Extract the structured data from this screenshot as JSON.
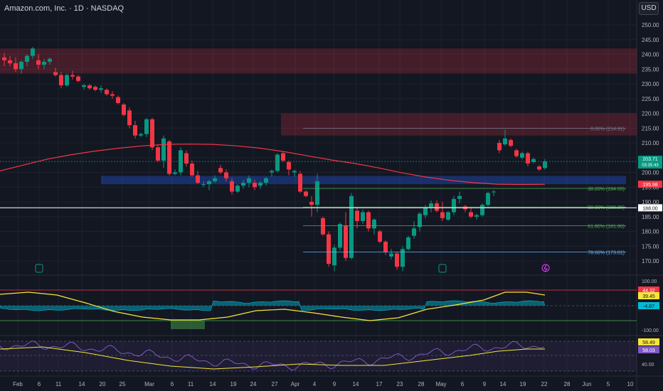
{
  "header": {
    "title": "Amazon.com, Inc. · 1D · NASDAQ",
    "currency": "USD"
  },
  "price_axis": {
    "ticks": [
      "250.00",
      "245.00",
      "240.00",
      "235.00",
      "230.00",
      "225.00",
      "220.00",
      "215.00",
      "210.00",
      "205.00",
      "200.00",
      "195.00",
      "190.00",
      "185.00",
      "180.00",
      "175.00",
      "170.00"
    ]
  },
  "time_axis": {
    "labels": [
      "Feb",
      "6",
      "11",
      "14",
      "20",
      "25",
      "Mar",
      "6",
      "11",
      "14",
      "19",
      "24",
      "27",
      "Apr",
      "4",
      "9",
      "14",
      "17",
      "23",
      "28",
      "May",
      "6",
      "9",
      "14",
      "19",
      "22",
      "28",
      "Jun",
      "5",
      "10"
    ]
  },
  "price_badges": {
    "last_price": "203.71",
    "countdown": "03:35:43",
    "ma_value": "195.98",
    "level_188": "188.00"
  },
  "fib_levels": [
    {
      "label": "0.00% (214.91)",
      "price": 214.91,
      "color": "#787b86"
    },
    {
      "label": "38.20% (194.55)",
      "price": 194.55,
      "color": "#4caf50"
    },
    {
      "label": "50.00% (188.26)",
      "price": 188.26,
      "color": "#4caf50"
    },
    {
      "label": "61.80% (181.96)",
      "price": 181.96,
      "color": "#4caf50"
    },
    {
      "label": "78.60% (173.01)",
      "price": 173.01,
      "color": "#64b5f6"
    }
  ],
  "zones": [
    {
      "from": 233.5,
      "to": 242.0,
      "color": "#f23645",
      "note": "resistance-zone-upper"
    },
    {
      "from": 212.5,
      "to": 220.0,
      "color": "#f23645",
      "note": "resistance-zone-lower"
    },
    {
      "from": 196.0,
      "to": 198.8,
      "color": "#2962ff",
      "note": "support-zone"
    }
  ],
  "oscillator1": {
    "axis_labels": [
      "100.00",
      "-100.00"
    ],
    "badges": [
      "44.32",
      "39.45",
      "-4.87"
    ]
  },
  "oscillator2": {
    "axis_labels": [
      "40.00"
    ],
    "badges": [
      "58.49",
      "58.03"
    ]
  },
  "colors": {
    "up": "#089981",
    "down": "#f23645",
    "ma": "#f23645",
    "background": "#131722",
    "grid": "#1e222d",
    "fib_green": "#4caf50"
  },
  "icons": [
    "earnings-icon-feb",
    "earnings-icon-may",
    "dividend-lightning-icon"
  ],
  "chart_data": {
    "type": "candlestick",
    "title": "Amazon.com, Inc. · 1D · NASDAQ",
    "currency": "USD",
    "ylim": [
      166,
      254
    ],
    "ohlc": [
      [
        239.0,
        240.5,
        236.0,
        238.0
      ],
      [
        238.0,
        239.5,
        236.0,
        237.0
      ],
      [
        237.0,
        239.0,
        234.0,
        235.0
      ],
      [
        235.0,
        238.0,
        233.5,
        237.5
      ],
      [
        237.5,
        240.0,
        236.0,
        239.5
      ],
      [
        239.5,
        242.5,
        238.5,
        242.0
      ],
      [
        238.0,
        240.0,
        235.0,
        236.5
      ],
      [
        236.5,
        238.5,
        235.0,
        237.5
      ],
      [
        237.5,
        239.0,
        236.5,
        238.5
      ],
      [
        234.0,
        235.5,
        232.5,
        233.0
      ],
      [
        233.0,
        234.0,
        228.5,
        229.5
      ],
      [
        229.5,
        233.5,
        229.0,
        233.0
      ],
      [
        233.0,
        234.5,
        231.5,
        232.5
      ],
      [
        232.5,
        233.0,
        230.5,
        231.0
      ],
      [
        229.0,
        230.0,
        228.0,
        229.5
      ],
      [
        229.5,
        230.0,
        228.0,
        228.5
      ],
      [
        229.0,
        229.5,
        227.5,
        228.0
      ],
      [
        228.0,
        229.5,
        227.0,
        228.5
      ],
      [
        228.0,
        228.5,
        226.0,
        226.5
      ],
      [
        226.5,
        227.5,
        225.0,
        226.0
      ],
      [
        225.5,
        226.0,
        223.0,
        223.5
      ],
      [
        223.0,
        223.5,
        219.0,
        219.5
      ],
      [
        221.0,
        222.0,
        215.0,
        216.0
      ],
      [
        216.0,
        217.5,
        211.5,
        212.5
      ],
      [
        212.5,
        213.5,
        212.0,
        213.0
      ],
      [
        213.0,
        218.5,
        212.0,
        218.0
      ],
      [
        218.0,
        218.5,
        207.5,
        208.5
      ],
      [
        208.5,
        209.5,
        203.5,
        204.0
      ],
      [
        204.0,
        212.5,
        201.5,
        211.5
      ],
      [
        210.5,
        211.0,
        199.0,
        199.5
      ],
      [
        199.5,
        201.0,
        199.0,
        200.0
      ],
      [
        200.0,
        208.5,
        199.0,
        207.5
      ],
      [
        206.5,
        207.5,
        202.0,
        203.0
      ],
      [
        203.0,
        204.0,
        198.5,
        199.0
      ],
      [
        199.0,
        200.5,
        196.0,
        196.5
      ],
      [
        196.0,
        197.0,
        195.0,
        196.0
      ],
      [
        196.0,
        197.5,
        194.0,
        197.0
      ],
      [
        197.0,
        199.0,
        196.5,
        198.0
      ],
      [
        201.5,
        202.5,
        199.5,
        200.0
      ],
      [
        200.0,
        201.0,
        197.0,
        198.0
      ],
      [
        197.0,
        198.0,
        192.5,
        193.5
      ],
      [
        193.5,
        196.0,
        193.0,
        195.5
      ],
      [
        195.5,
        197.5,
        194.5,
        196.5
      ],
      [
        196.5,
        199.0,
        195.0,
        198.0
      ],
      [
        196.5,
        197.5,
        194.0,
        195.0
      ],
      [
        195.5,
        197.0,
        194.5,
        196.5
      ],
      [
        196.5,
        198.5,
        195.5,
        198.0
      ],
      [
        200.0,
        201.0,
        198.5,
        200.5
      ],
      [
        200.5,
        206.5,
        200.0,
        206.0
      ],
      [
        206.5,
        207.0,
        203.5,
        204.0
      ],
      [
        203.5,
        204.0,
        199.0,
        201.0
      ],
      [
        200.0,
        201.0,
        198.5,
        200.5
      ],
      [
        199.5,
        200.5,
        193.0,
        193.5
      ],
      [
        193.5,
        194.0,
        191.5,
        192.0
      ],
      [
        190.0,
        192.0,
        185.0,
        189.0
      ],
      [
        189.0,
        199.5,
        186.5,
        197.0
      ],
      [
        184.5,
        185.0,
        178.5,
        179.0
      ],
      [
        179.0,
        180.0,
        168.0,
        169.0
      ],
      [
        168.5,
        175.5,
        166.5,
        174.5
      ],
      [
        174.5,
        183.0,
        173.5,
        182.5
      ],
      [
        182.0,
        186.5,
        170.0,
        171.0
      ],
      [
        171.0,
        193.0,
        170.5,
        192.0
      ],
      [
        187.0,
        188.0,
        181.0,
        183.5
      ],
      [
        183.5,
        187.5,
        182.5,
        186.5
      ],
      [
        186.5,
        187.0,
        180.0,
        181.0
      ],
      [
        181.0,
        184.5,
        179.0,
        184.0
      ],
      [
        180.0,
        180.5,
        176.0,
        176.5
      ],
      [
        176.5,
        177.0,
        172.0,
        173.0
      ],
      [
        171.5,
        174.0,
        170.5,
        172.5
      ],
      [
        172.5,
        173.0,
        167.0,
        168.0
      ],
      [
        168.0,
        175.0,
        166.5,
        174.0
      ],
      [
        174.0,
        178.5,
        173.5,
        178.0
      ],
      [
        178.5,
        183.5,
        177.5,
        181.0
      ],
      [
        181.5,
        186.5,
        180.0,
        186.0
      ],
      [
        185.5,
        189.0,
        184.5,
        188.0
      ],
      [
        188.0,
        190.5,
        186.5,
        189.5
      ],
      [
        189.5,
        190.5,
        186.5,
        187.0
      ],
      [
        186.5,
        190.0,
        183.5,
        184.5
      ],
      [
        184.0,
        187.0,
        183.5,
        186.5
      ],
      [
        186.5,
        192.0,
        185.5,
        191.0
      ],
      [
        191.0,
        193.5,
        189.5,
        192.0
      ],
      [
        188.5,
        189.0,
        186.5,
        187.5
      ],
      [
        186.5,
        188.0,
        184.5,
        185.0
      ],
      [
        185.0,
        186.0,
        184.0,
        185.5
      ],
      [
        185.5,
        189.5,
        185.0,
        189.0
      ],
      [
        189.0,
        193.5,
        188.5,
        193.0
      ],
      [
        193.5,
        194.0,
        192.0,
        193.5
      ],
      [
        210.0,
        211.0,
        206.5,
        207.5
      ],
      [
        209.5,
        214.5,
        209.0,
        211.5
      ],
      [
        211.0,
        211.5,
        208.5,
        209.0
      ],
      [
        207.5,
        208.0,
        205.0,
        205.5
      ],
      [
        205.0,
        207.0,
        204.5,
        206.5
      ],
      [
        206.5,
        207.0,
        202.0,
        203.0
      ],
      [
        203.5,
        205.0,
        203.0,
        204.5
      ],
      [
        202.0,
        202.5,
        200.5,
        201.0
      ],
      [
        201.5,
        204.5,
        201.0,
        203.71
      ]
    ],
    "moving_average": {
      "name": "MA",
      "last_value": 195.98,
      "values": [
        200.5,
        202.5,
        204.5,
        206,
        207.2,
        208.2,
        209,
        209.5,
        209.6,
        209.5,
        209,
        208.2,
        207,
        205.6,
        204.2,
        203,
        201.5,
        199.8,
        198.4,
        197.3,
        196.5,
        196,
        195.9,
        195.98
      ]
    }
  }
}
